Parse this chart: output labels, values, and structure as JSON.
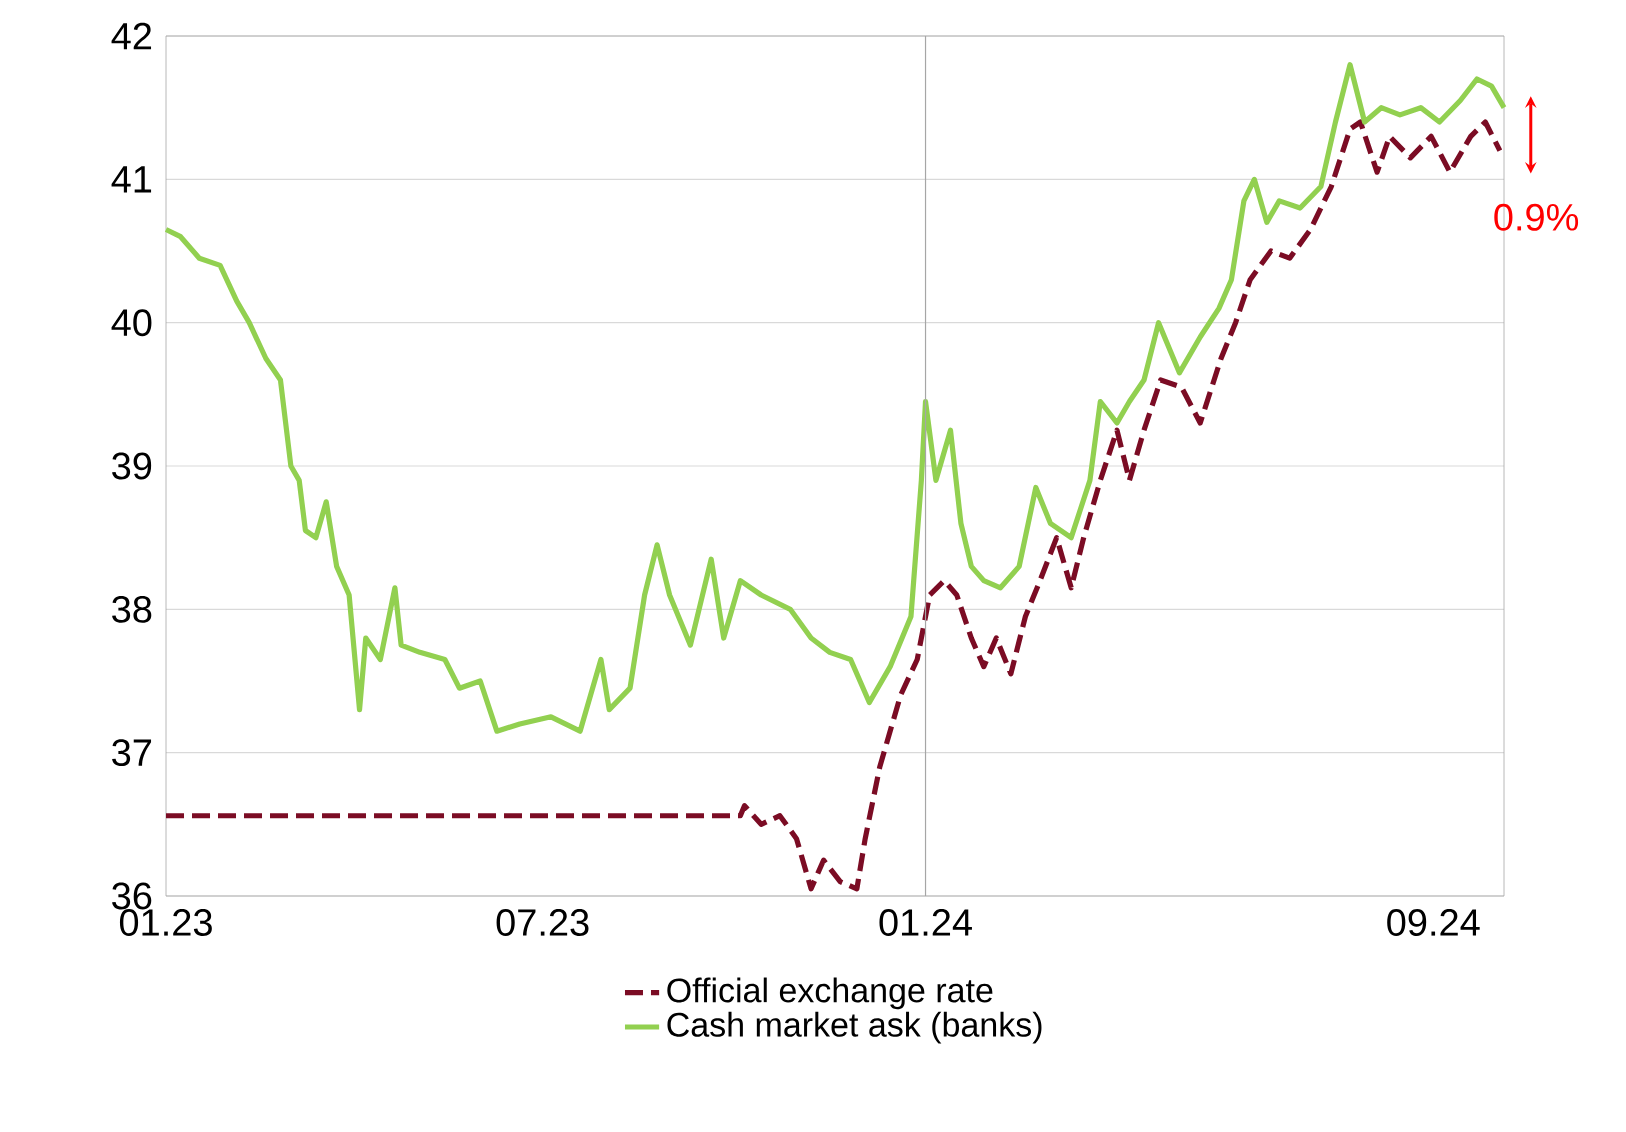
{
  "chart_data": {
    "type": "line",
    "xlim": [
      "2023-01-01",
      "2024-10-05"
    ],
    "ylim": [
      36,
      42
    ],
    "xticks": [
      {
        "value": "2023-01-01",
        "label": "01.23"
      },
      {
        "value": "2023-07-01",
        "label": "07.23"
      },
      {
        "value": "2024-01-01",
        "label": "01.24"
      },
      {
        "value": "2024-09-01",
        "label": "09.24"
      }
    ],
    "yticks": [
      36,
      37,
      38,
      39,
      40,
      41,
      42
    ],
    "grid": "y",
    "legend": "bottom",
    "marker": "none",
    "ref_lines": [
      {
        "axis": "x",
        "value": "2024-01-01",
        "color": "#a6a6a6"
      }
    ],
    "annotations": [
      "0.9%"
    ],
    "series": [
      {
        "name": "Official exchange rate",
        "color": "#7b0c24",
        "line_style": "dashed",
        "x": [
          "2023-01-01",
          "2023-10-04",
          "2023-10-06",
          "2023-10-14",
          "2023-10-23",
          "2023-10-31",
          "2023-11-07",
          "2023-11-13",
          "2023-11-21",
          "2023-11-29",
          "2023-12-03",
          "2023-12-10",
          "2023-12-20",
          "2023-12-28",
          "2024-01-03",
          "2024-01-10",
          "2024-01-16",
          "2024-01-23",
          "2024-01-29",
          "2024-02-04",
          "2024-02-11",
          "2024-02-18",
          "2024-02-25",
          "2024-03-04",
          "2024-03-11",
          "2024-03-17",
          "2024-03-25",
          "2024-04-02",
          "2024-04-08",
          "2024-04-15",
          "2024-04-23",
          "2024-05-03",
          "2024-05-12",
          "2024-05-22",
          "2024-05-29",
          "2024-06-05",
          "2024-06-15",
          "2024-06-24",
          "2024-07-04",
          "2024-07-14",
          "2024-07-23",
          "2024-07-28",
          "2024-08-05",
          "2024-08-11",
          "2024-08-21",
          "2024-08-31",
          "2024-09-09",
          "2024-09-19",
          "2024-09-26",
          "2024-10-03"
        ],
        "values": [
          36.56,
          36.56,
          36.63,
          36.5,
          36.56,
          36.4,
          36.05,
          36.25,
          36.1,
          36.05,
          36.4,
          36.9,
          37.4,
          37.65,
          38.1,
          38.2,
          38.1,
          37.8,
          37.6,
          37.8,
          37.55,
          37.95,
          38.2,
          38.5,
          38.15,
          38.5,
          38.9,
          39.25,
          38.9,
          39.25,
          39.6,
          39.55,
          39.3,
          39.75,
          40.0,
          40.3,
          40.5,
          40.45,
          40.65,
          40.95,
          41.35,
          41.4,
          41.05,
          41.3,
          41.15,
          41.3,
          41.05,
          41.3,
          41.4,
          41.2
        ]
      },
      {
        "name": "Cash market ask (banks)",
        "color": "#92d050",
        "line_style": "solid",
        "x": [
          "2023-01-01",
          "2023-01-08",
          "2023-01-17",
          "2023-01-27",
          "2023-02-04",
          "2023-02-10",
          "2023-02-18",
          "2023-02-25",
          "2023-03-02",
          "2023-03-06",
          "2023-03-09",
          "2023-03-14",
          "2023-03-19",
          "2023-03-24",
          "2023-03-30",
          "2023-04-04",
          "2023-04-07",
          "2023-04-14",
          "2023-04-21",
          "2023-04-24",
          "2023-05-03",
          "2023-05-15",
          "2023-05-22",
          "2023-06-01",
          "2023-06-09",
          "2023-06-20",
          "2023-07-05",
          "2023-07-19",
          "2023-07-29",
          "2023-08-02",
          "2023-08-12",
          "2023-08-19",
          "2023-08-25",
          "2023-08-31",
          "2023-09-10",
          "2023-09-20",
          "2023-09-26",
          "2023-10-04",
          "2023-10-14",
          "2023-10-28",
          "2023-11-07",
          "2023-11-16",
          "2023-11-26",
          "2023-12-05",
          "2023-12-15",
          "2023-12-25",
          "2023-12-30",
          "2024-01-01",
          "2024-01-06",
          "2024-01-13",
          "2024-01-18",
          "2024-01-23",
          "2024-01-29",
          "2024-02-06",
          "2024-02-15",
          "2024-02-23",
          "2024-03-01",
          "2024-03-11",
          "2024-03-20",
          "2024-03-25",
          "2024-04-02",
          "2024-04-08",
          "2024-04-15",
          "2024-04-22",
          "2024-05-02",
          "2024-05-12",
          "2024-05-21",
          "2024-05-27",
          "2024-06-02",
          "2024-06-07",
          "2024-06-13",
          "2024-06-19",
          "2024-06-29",
          "2024-07-09",
          "2024-07-16",
          "2024-07-23",
          "2024-07-30",
          "2024-08-07",
          "2024-08-16",
          "2024-08-26",
          "2024-09-04",
          "2024-09-14",
          "2024-09-22",
          "2024-09-29",
          "2024-10-05"
        ],
        "values": [
          40.65,
          40.6,
          40.45,
          40.4,
          40.15,
          40.0,
          39.75,
          39.6,
          39.0,
          38.9,
          38.55,
          38.5,
          38.75,
          38.3,
          38.1,
          37.3,
          37.8,
          37.65,
          38.15,
          37.75,
          37.7,
          37.65,
          37.45,
          37.5,
          37.15,
          37.2,
          37.25,
          37.15,
          37.65,
          37.3,
          37.45,
          38.1,
          38.45,
          38.1,
          37.75,
          38.35,
          37.8,
          38.2,
          38.1,
          38.0,
          37.8,
          37.7,
          37.65,
          37.35,
          37.6,
          37.95,
          38.9,
          39.45,
          38.9,
          39.25,
          38.6,
          38.3,
          38.2,
          38.15,
          38.3,
          38.85,
          38.6,
          38.5,
          38.9,
          39.45,
          39.3,
          39.45,
          39.6,
          40.0,
          39.65,
          39.9,
          40.1,
          40.3,
          40.85,
          41.0,
          40.7,
          40.85,
          40.8,
          40.95,
          41.4,
          41.8,
          41.4,
          41.5,
          41.45,
          41.5,
          41.4,
          41.55,
          41.7,
          41.65,
          41.5
        ]
      }
    ]
  }
}
